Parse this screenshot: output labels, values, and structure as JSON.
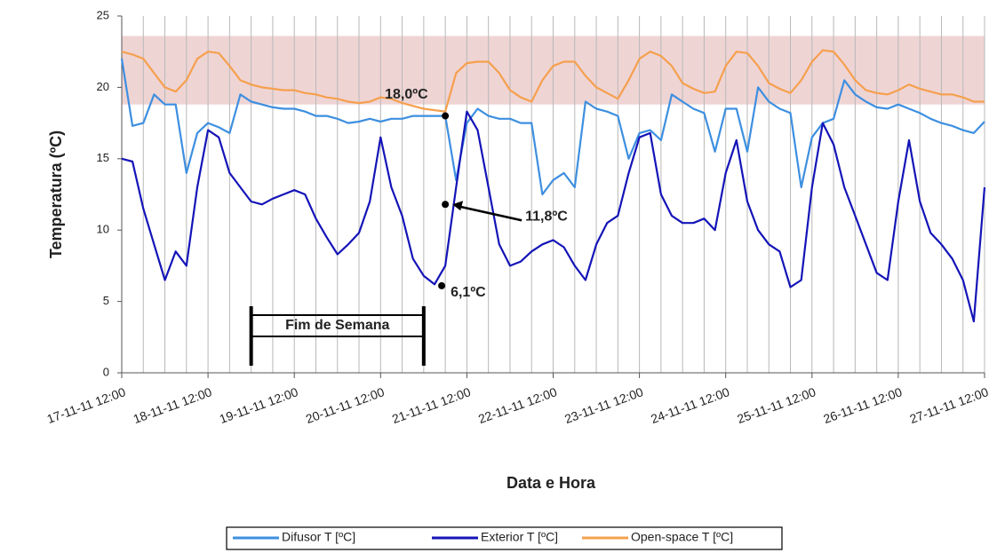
{
  "chart_data": {
    "type": "line",
    "xlabel": "Data e Hora",
    "ylabel": "Temperatura (ºC)",
    "xlim": [
      "17-11-11 12:00",
      "27-11-11 12:00"
    ],
    "xticks": [
      "17-11-11 12:00",
      "18-11-11 12:00",
      "19-11-11 12:00",
      "20-11-11 12:00",
      "21-11-11 12:00",
      "22-11-11 12:00",
      "23-11-11 12:00",
      "24-11-11 12:00",
      "25-11-11 12:00",
      "26-11-11 12:00",
      "27-11-11 12:00"
    ],
    "xgrid_hours": 6,
    "ylim": [
      0,
      25
    ],
    "yticks": [
      0,
      5,
      10,
      15,
      20,
      25
    ],
    "band": {
      "range": [
        18.8,
        23.6
      ],
      "color": "#eccccc"
    },
    "weekend": {
      "label": "Fim de Semana",
      "start": "19-11-11 00:00",
      "end": "21-11-11 00:00"
    },
    "annotations": [
      {
        "text": "18,0ºC",
        "x": "21-11-11 06:00",
        "y": 18.0,
        "color": "#7a5050"
      },
      {
        "text": "11,8ºC",
        "x": "21-11-11 06:00",
        "y": 11.8,
        "color": "#111111"
      },
      {
        "text": "6,1ºC",
        "x": "21-11-11 05:00",
        "y": 6.1,
        "color": "#111111"
      }
    ],
    "x": [
      "17-11-11 12:00",
      "17-11-11 15:00",
      "17-11-11 18:00",
      "17-11-11 21:00",
      "18-11-11 00:00",
      "18-11-11 03:00",
      "18-11-11 06:00",
      "18-11-11 09:00",
      "18-11-11 12:00",
      "18-11-11 15:00",
      "18-11-11 18:00",
      "18-11-11 21:00",
      "19-11-11 00:00",
      "19-11-11 03:00",
      "19-11-11 06:00",
      "19-11-11 09:00",
      "19-11-11 12:00",
      "19-11-11 15:00",
      "19-11-11 18:00",
      "19-11-11 21:00",
      "20-11-11 00:00",
      "20-11-11 03:00",
      "20-11-11 06:00",
      "20-11-11 09:00",
      "20-11-11 12:00",
      "20-11-11 15:00",
      "20-11-11 18:00",
      "20-11-11 21:00",
      "21-11-11 00:00",
      "21-11-11 03:00",
      "21-11-11 06:00",
      "21-11-11 09:00",
      "21-11-11 12:00",
      "21-11-11 15:00",
      "21-11-11 18:00",
      "21-11-11 21:00",
      "22-11-11 00:00",
      "22-11-11 03:00",
      "22-11-11 06:00",
      "22-11-11 09:00",
      "22-11-11 12:00",
      "22-11-11 15:00",
      "22-11-11 18:00",
      "22-11-11 21:00",
      "23-11-11 00:00",
      "23-11-11 03:00",
      "23-11-11 06:00",
      "23-11-11 09:00",
      "23-11-11 12:00",
      "23-11-11 15:00",
      "23-11-11 18:00",
      "23-11-11 21:00",
      "24-11-11 00:00",
      "24-11-11 03:00",
      "24-11-11 06:00",
      "24-11-11 09:00",
      "24-11-11 12:00",
      "24-11-11 15:00",
      "24-11-11 18:00",
      "24-11-11 21:00",
      "25-11-11 00:00",
      "25-11-11 03:00",
      "25-11-11 06:00",
      "25-11-11 09:00",
      "25-11-11 12:00",
      "25-11-11 15:00",
      "25-11-11 18:00",
      "25-11-11 21:00",
      "26-11-11 00:00",
      "26-11-11 03:00",
      "26-11-11 06:00",
      "26-11-11 09:00",
      "26-11-11 12:00",
      "26-11-11 15:00",
      "26-11-11 18:00",
      "26-11-11 21:00",
      "27-11-11 00:00",
      "27-11-11 03:00",
      "27-11-11 06:00",
      "27-11-11 09:00",
      "27-11-11 12:00"
    ],
    "series": [
      {
        "name": "Difusor T [ºC]",
        "color": "#3d8fe0",
        "values": [
          22,
          17.3,
          17.5,
          19.5,
          18.8,
          18.8,
          14,
          16.8,
          17.5,
          17.2,
          16.8,
          19.5,
          19,
          18.8,
          18.6,
          18.5,
          18.5,
          18.3,
          18,
          18,
          17.8,
          17.5,
          17.6,
          17.8,
          17.6,
          17.8,
          17.8,
          18,
          18,
          18,
          18,
          13.5,
          17.5,
          18.5,
          18,
          17.8,
          17.8,
          17.5,
          17.5,
          12.5,
          13.5,
          14,
          13,
          19,
          18.5,
          18.3,
          18,
          15,
          16.8,
          17,
          16.3,
          19.5,
          19,
          18.5,
          18.2,
          15.5,
          18.5,
          18.5,
          15.5,
          20,
          19,
          18.5,
          18.2,
          13,
          16.5,
          17.5,
          17.8,
          20.5,
          19.5,
          19,
          18.6,
          18.5,
          18.8,
          18.5,
          18.2,
          17.8,
          17.5,
          17.3,
          17,
          16.8,
          17.6
        ]
      },
      {
        "name": "Exterior T [ºC]",
        "color": "#1414b8",
        "values": [
          15,
          14.8,
          11.5,
          9,
          6.5,
          8.5,
          7.5,
          13,
          17,
          16.5,
          14,
          13,
          12,
          11.8,
          12.2,
          12.5,
          12.8,
          12.5,
          10.8,
          9.5,
          8.3,
          9,
          9.8,
          12,
          16.5,
          13,
          11,
          8,
          6.8,
          6.2,
          7.5,
          13,
          18.3,
          17,
          13,
          9,
          7.5,
          7.8,
          8.5,
          9,
          9.3,
          8.8,
          7.5,
          6.5,
          9,
          10.5,
          11,
          14,
          16.5,
          16.8,
          12.5,
          11,
          10.5,
          10.5,
          10.8,
          10,
          14,
          16.3,
          12,
          10,
          9,
          8.5,
          6,
          6.5,
          13,
          17.5,
          16,
          13,
          11,
          9,
          7,
          6.5,
          12,
          16.3,
          12,
          9.8,
          9,
          8,
          6.5,
          3.6,
          13
        ]
      },
      {
        "name": "Open-space T [ºC]",
        "color": "#f5a04e",
        "values": [
          22.5,
          22.3,
          22,
          21,
          20,
          19.7,
          20.5,
          22,
          22.5,
          22.4,
          21.5,
          20.5,
          20.2,
          20,
          19.9,
          19.8,
          19.8,
          19.6,
          19.5,
          19.3,
          19.2,
          19,
          18.9,
          19,
          19.3,
          19.2,
          18.9,
          18.7,
          18.5,
          18.4,
          18.3,
          21,
          21.7,
          21.8,
          21.8,
          21,
          19.8,
          19.3,
          19,
          20.5,
          21.5,
          21.8,
          21.8,
          20.8,
          20,
          19.6,
          19.2,
          20.5,
          22,
          22.5,
          22.2,
          21.5,
          20.3,
          19.9,
          19.6,
          19.7,
          21.5,
          22.5,
          22.4,
          21.5,
          20.3,
          19.9,
          19.6,
          20.5,
          21.8,
          22.6,
          22.5,
          21.6,
          20.5,
          19.8,
          19.6,
          19.5,
          19.8,
          20.2,
          19.9,
          19.7,
          19.5,
          19.5,
          19.3,
          19,
          19
        ]
      }
    ]
  }
}
